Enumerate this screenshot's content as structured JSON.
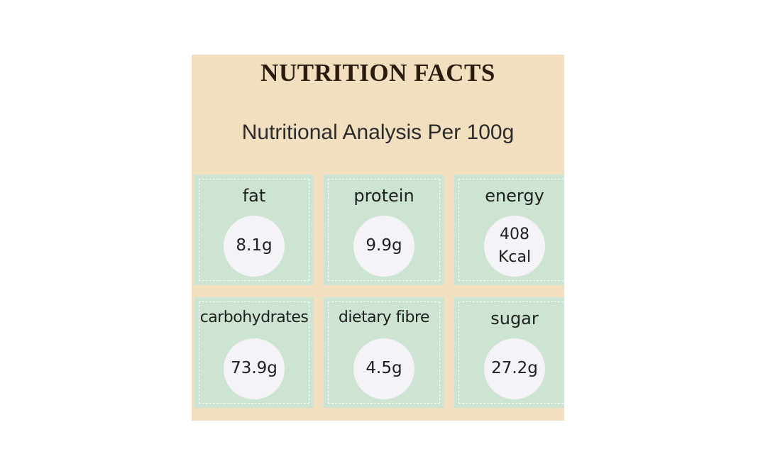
{
  "label": {
    "title": "NUTRITION FACTS",
    "subtitle": "Nutritional Analysis Per 100g",
    "nutrients": [
      {
        "name": "fat",
        "value": "8.1g"
      },
      {
        "name": "protein",
        "value": "9.9g"
      },
      {
        "name": "energy",
        "value": "408",
        "unit": "Kcal"
      },
      {
        "name": "carbohydrates",
        "value": "73.9g"
      },
      {
        "name": "dietary fibre",
        "value": "4.5g"
      },
      {
        "name": "sugar",
        "value": "27.2g"
      }
    ]
  },
  "colors": {
    "panel_background": "#f1dfbf",
    "tile_background": "#cde4d2",
    "circle_fill": "#f4f3f8",
    "title_text": "#2a1d10"
  }
}
